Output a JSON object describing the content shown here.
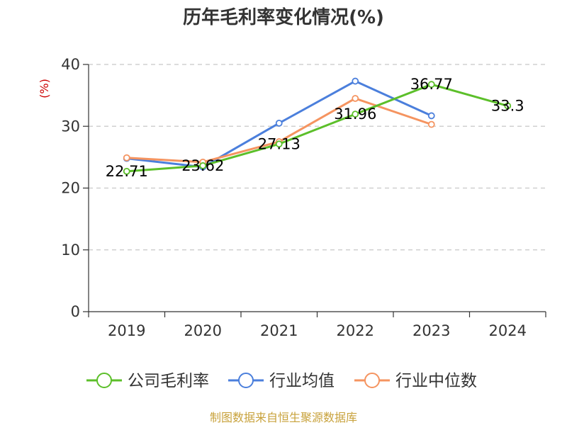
{
  "chart_data": {
    "type": "line",
    "title": "历年毛利率变化情况(%)",
    "ylabel": "(%)",
    "xlabel": "",
    "categories": [
      "2019",
      "2020",
      "2021",
      "2022",
      "2023",
      "2024"
    ],
    "ylim": [
      0,
      40
    ],
    "yticks": [
      0,
      10,
      20,
      30,
      40
    ],
    "grid": true,
    "legend_position": "bottom",
    "series": [
      {
        "name": "公司毛利率",
        "color": "#5cbf2a",
        "values": [
          22.71,
          23.62,
          27.13,
          31.96,
          36.77,
          33.3
        ],
        "labels": [
          "22.71",
          "23.62",
          "27.13",
          "31.96",
          "36.77",
          "33.3"
        ]
      },
      {
        "name": "行业均值",
        "color": "#4b7fdc",
        "values": [
          24.8,
          23.4,
          30.5,
          37.3,
          31.7,
          null
        ]
      },
      {
        "name": "行业中位数",
        "color": "#f59460",
        "values": [
          24.9,
          24.2,
          27.5,
          34.5,
          30.3,
          null
        ]
      }
    ]
  },
  "source": "制图数据来自恒生聚源数据库"
}
